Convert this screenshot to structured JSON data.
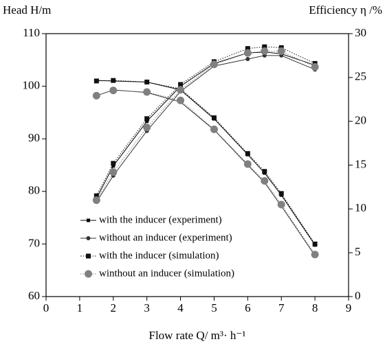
{
  "chart_data": {
    "type": "line",
    "ylabel": "Head H/m",
    "y2label": "Efficiency η /%",
    "xlabel": "Flow rate  Q/ m³· h⁻¹",
    "xlim": [
      0,
      9
    ],
    "xticks": [
      0,
      1,
      2,
      3,
      4,
      5,
      6,
      7,
      8,
      9
    ],
    "ylim": [
      60,
      110
    ],
    "yticks": [
      60,
      70,
      80,
      90,
      100,
      110
    ],
    "y2lim": [
      0,
      30
    ],
    "y2ticks": [
      0,
      5,
      10,
      15,
      20,
      25,
      30
    ],
    "x": [
      1.5,
      2,
      3,
      4,
      5,
      6,
      6.5,
      7,
      8
    ],
    "series": [
      {
        "name": "with the inducer (experiment)",
        "color": "#000000",
        "marker": "square",
        "line": "solid",
        "values": [
          101.1,
          101.0,
          100.8,
          99.3,
          93.8,
          87.0,
          83.5,
          79.3,
          69.8
        ],
        "y2_values": [
          11.2,
          14.9,
          20.0,
          24.0,
          26.6,
          27.8,
          27.9,
          27.7,
          26.4
        ]
      },
      {
        "name": "without an inducer (experiment)",
        "color": "#333333",
        "marker": "circle",
        "line": "solid",
        "values": [
          98.2,
          99.3,
          98.8,
          97.0,
          91.7,
          85.0,
          81.7,
          77.2,
          67.8
        ],
        "y2_values": [
          10.8,
          13.8,
          18.9,
          23.4,
          26.3,
          27.1,
          27.5,
          27.5,
          25.9
        ]
      },
      {
        "name": "with the inducer (simulation)",
        "color": "#111111",
        "marker": "bigsquare",
        "line": "dotted",
        "values": [
          101.0,
          101.1,
          100.8,
          99.5,
          94.0,
          87.2,
          83.8,
          79.6,
          70.0
        ],
        "y2_values": [
          11.5,
          15.2,
          20.3,
          24.2,
          26.8,
          28.3,
          28.5,
          28.4,
          26.6
        ]
      },
      {
        "name": "winthout an inducer (simulation)",
        "color": "#808080",
        "marker": "bigcircle",
        "line": "dotted",
        "values": [
          98.2,
          99.2,
          98.9,
          97.3,
          91.8,
          85.2,
          82.0,
          77.5,
          68.0
        ],
        "y2_values": [
          11.0,
          14.2,
          19.3,
          23.6,
          26.5,
          27.8,
          28.0,
          28.0,
          26.2
        ]
      }
    ]
  }
}
